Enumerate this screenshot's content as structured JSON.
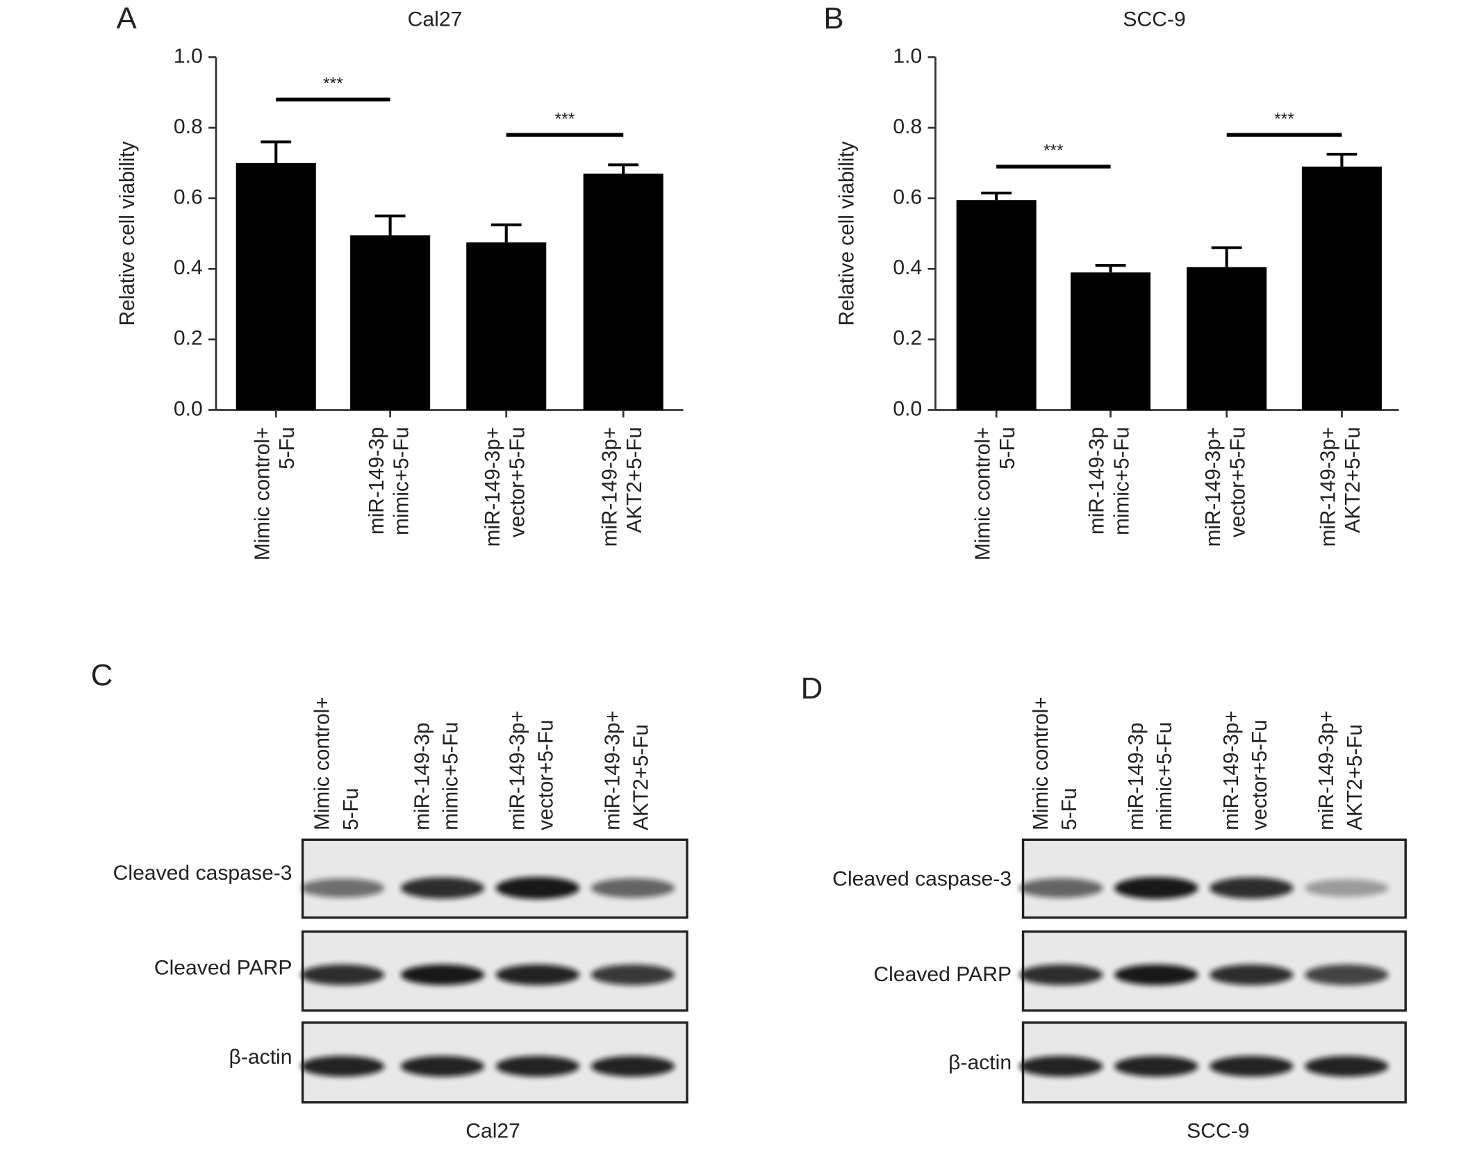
{
  "chart_data": [
    {
      "type": "bar",
      "panel": "A",
      "title": "Cal27",
      "y_label": "Relative cell viability",
      "categories": [
        [
          "Mimic control+",
          "5-Fu"
        ],
        [
          "miR-149-3p",
          "mimic+5-Fu"
        ],
        [
          "miR-149-3p+",
          "vector+5-Fu"
        ],
        [
          "miR-149-3p+",
          "AKT2+5-Fu"
        ]
      ],
      "values": [
        0.7,
        0.495,
        0.475,
        0.67
      ],
      "errors": [
        0.06,
        0.055,
        0.05,
        0.025
      ],
      "color": "#000000",
      "ylim": [
        0,
        1
      ],
      "yticks": [
        {
          "value": 0,
          "label": "0.0"
        },
        0.2,
        0.4,
        0.6,
        0.8,
        {
          "value": 1,
          "label": "1.0"
        }
      ],
      "annotations": [
        {
          "text": "***",
          "x": [
            0,
            1
          ],
          "y": 0.88
        },
        {
          "text": "***",
          "x": [
            2,
            3
          ],
          "y": 0.78
        }
      ]
    },
    {
      "type": "bar",
      "panel": "B",
      "title": "SCC-9",
      "y_label": "Relative cell viability",
      "categories": [
        [
          "Mimic control+",
          "5-Fu"
        ],
        [
          "miR-149-3p",
          "mimic+5-Fu"
        ],
        [
          "miR-149-3p+",
          "vector+5-Fu"
        ],
        [
          "miR-149-3p+",
          "AKT2+5-Fu"
        ]
      ],
      "values": [
        0.595,
        0.39,
        0.405,
        0.69
      ],
      "errors": [
        0.02,
        0.02,
        0.055,
        0.035
      ],
      "color": "#000000",
      "ylim": [
        0,
        1
      ],
      "yticks": [
        {
          "value": 0,
          "label": "0.0"
        },
        0.2,
        0.4,
        0.6,
        0.8,
        {
          "value": 1,
          "label": "1.0"
        }
      ],
      "annotations": [
        {
          "text": "***",
          "x": [
            0,
            1
          ],
          "y": 0.69
        },
        {
          "text": "***",
          "x": [
            2,
            3
          ],
          "y": 0.78
        }
      ]
    }
  ],
  "blots": [
    {
      "panel": "C",
      "caption": "Cal27",
      "columns": [
        [
          "Mimic control+",
          "5-Fu"
        ],
        [
          "miR-149-3p",
          "mimic+5-Fu"
        ],
        [
          "miR-149-3p+",
          "vector+5-Fu"
        ],
        [
          "miR-149-3p+",
          "AKT2+5-Fu"
        ]
      ],
      "rows": [
        "Cleaved caspase-3",
        "Cleaved PARP",
        "β-actin"
      ]
    },
    {
      "panel": "D",
      "caption": "SCC-9",
      "columns": [
        [
          "Mimic control+",
          "5-Fu"
        ],
        [
          "miR-149-3p",
          "mimic+5-Fu"
        ],
        [
          "miR-149-3p+",
          "vector+5-Fu"
        ],
        [
          "miR-149-3p+",
          "AKT2+5-Fu"
        ]
      ],
      "rows": [
        "Cleaved caspase-3",
        "Cleaved PARP",
        "β-actin"
      ]
    }
  ]
}
